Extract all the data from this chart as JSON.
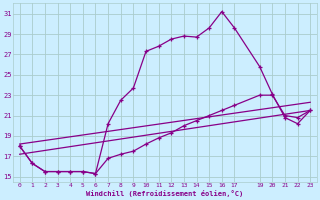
{
  "xlabel": "Windchill (Refroidissement éolien,°C)",
  "bg_color": "#cceeff",
  "grid_color": "#aacccc",
  "line_color": "#880088",
  "xlim": [
    -0.5,
    23.5
  ],
  "ylim": [
    14.5,
    32.0
  ],
  "yticks": [
    15,
    17,
    19,
    21,
    23,
    25,
    27,
    29,
    31
  ],
  "xticks": [
    0,
    1,
    2,
    3,
    4,
    5,
    6,
    7,
    8,
    9,
    10,
    11,
    12,
    13,
    14,
    15,
    16,
    17,
    19,
    20,
    21,
    22,
    23
  ],
  "series1_x": [
    0,
    1,
    2,
    3,
    4,
    5,
    6,
    7,
    8,
    9,
    10,
    11,
    12,
    13,
    14,
    15,
    16,
    17,
    19,
    20,
    21,
    22,
    23
  ],
  "series1_y": [
    18.0,
    16.3,
    15.5,
    15.5,
    15.5,
    15.5,
    15.3,
    20.2,
    22.5,
    23.7,
    27.3,
    27.8,
    28.5,
    28.8,
    28.7,
    29.6,
    31.2,
    29.6,
    25.8,
    23.1,
    20.8,
    20.2,
    21.5
  ],
  "series2_x": [
    0,
    1,
    2,
    3,
    4,
    5,
    6,
    7,
    8,
    9,
    10,
    11,
    12,
    13,
    14,
    15,
    16,
    17,
    19,
    20,
    21,
    22,
    23
  ],
  "series2_y": [
    18.0,
    16.3,
    15.5,
    15.5,
    15.5,
    15.5,
    15.3,
    16.8,
    17.2,
    17.5,
    18.2,
    18.8,
    19.3,
    20.0,
    20.5,
    21.0,
    21.5,
    22.0,
    23.0,
    23.0,
    21.0,
    20.8,
    21.5
  ],
  "series3_x": [
    0,
    23
  ],
  "series3_y": [
    18.2,
    22.3
  ],
  "series4_x": [
    0,
    23
  ],
  "series4_y": [
    17.2,
    21.5
  ]
}
